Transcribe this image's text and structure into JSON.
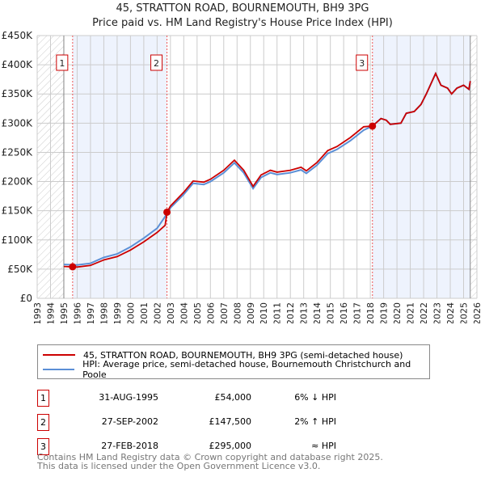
{
  "chart_data": {
    "type": "line",
    "title": "45, STRATTON ROAD, BOURNEMOUTH, BH9 3PG",
    "subtitle": "Price paid vs. HM Land Registry's House Price Index (HPI)",
    "xlim": [
      1993,
      2026
    ],
    "ylim": [
      0,
      450000
    ],
    "yticks": [
      {
        "v": 0,
        "label": "£0"
      },
      {
        "v": 50000,
        "label": "£50K"
      },
      {
        "v": 100000,
        "label": "£100K"
      },
      {
        "v": 150000,
        "label": "£150K"
      },
      {
        "v": 200000,
        "label": "£200K"
      },
      {
        "v": 250000,
        "label": "£250K"
      },
      {
        "v": 300000,
        "label": "£300K"
      },
      {
        "v": 350000,
        "label": "£350K"
      },
      {
        "v": 400000,
        "label": "£400K"
      },
      {
        "v": 450000,
        "label": "£450K"
      }
    ],
    "xticks": [
      1993,
      1994,
      1995,
      1996,
      1997,
      1998,
      1999,
      2000,
      2001,
      2002,
      2003,
      2004,
      2005,
      2006,
      2007,
      2008,
      2009,
      2010,
      2011,
      2012,
      2013,
      2014,
      2015,
      2016,
      2017,
      2018,
      2019,
      2020,
      2021,
      2022,
      2023,
      2024,
      2025,
      2026
    ],
    "grid": true,
    "series": [
      {
        "name": "HPI: Average price, semi-detached house, Bournemouth Christchurch and Poole",
        "color": "#5b8fd6",
        "x": [
          1995,
          1996,
          1997,
          1998,
          1999,
          2000,
          2001,
          2002,
          2002.75,
          2003,
          2004,
          2004.7,
          2005.5,
          2006,
          2007,
          2007.8,
          2008.5,
          2009.2,
          2009.8,
          2010.5,
          2011,
          2012,
          2012.8,
          2013.2,
          2014,
          2014.8,
          2015.5,
          2016.5,
          2017.5,
          2018.16,
          2018.8,
          2019.2,
          2019.5,
          2020.3,
          2020.7,
          2021.3,
          2021.8,
          2022.2,
          2022.9,
          2023.3,
          2023.8,
          2024.1,
          2024.5,
          2025,
          2025.4,
          2025.5
        ],
        "y": [
          58000,
          57000,
          60000,
          70000,
          76000,
          88000,
          103000,
          120000,
          145000,
          155000,
          178000,
          197000,
          195000,
          200000,
          215000,
          232000,
          215000,
          188000,
          207000,
          215000,
          212000,
          215000,
          220000,
          214000,
          228000,
          248000,
          255000,
          270000,
          288000,
          295000,
          308000,
          305000,
          298000,
          300000,
          317000,
          320000,
          332000,
          350000,
          385000,
          365000,
          360000,
          350000,
          360000,
          365000,
          358000,
          372000
        ]
      },
      {
        "name": "45, STRATTON ROAD, BOURNEMOUTH, BH9 3PG (semi-detached house)",
        "color": "#cc0000",
        "x": [
          1995,
          1996,
          1997,
          1998,
          1999,
          2000,
          2001,
          2002,
          2002.6,
          2002.74,
          2003,
          2004,
          2004.7,
          2005.5,
          2006,
          2007,
          2007.8,
          2008.5,
          2009.2,
          2009.8,
          2010.5,
          2011,
          2012,
          2012.8,
          2013.2,
          2014,
          2014.8,
          2015.5,
          2016.5,
          2017.5,
          2018.16,
          2018.8,
          2019.2,
          2019.5,
          2020.3,
          2020.7,
          2021.3,
          2021.8,
          2022.2,
          2022.9,
          2023.3,
          2023.8,
          2024.1,
          2024.5,
          2025,
          2025.4,
          2025.5
        ],
        "y": [
          54500,
          53600,
          56400,
          65800,
          71400,
          82700,
          96800,
          112800,
          125000,
          147500,
          158000,
          181600,
          200900,
          198900,
          204000,
          219300,
          236600,
          219300,
          191800,
          211100,
          219300,
          216200,
          219300,
          224400,
          218300,
          232600,
          253000,
          260100,
          275400,
          293800,
          295000,
          308000,
          305000,
          298000,
          300000,
          317000,
          320000,
          332000,
          350000,
          385000,
          365000,
          360000,
          350000,
          360000,
          365000,
          358000,
          372000
        ]
      }
    ],
    "sales": [
      {
        "n": "1",
        "x": 1995.66,
        "price": 54000
      },
      {
        "n": "2",
        "x": 2002.74,
        "price": 147500
      },
      {
        "n": "3",
        "x": 2018.16,
        "price": 295000
      }
    ],
    "shaded": [
      [
        1995.66,
        2002.74
      ],
      [
        2018.16,
        2025.5
      ]
    ],
    "hatched": [
      [
        1993,
        1995
      ],
      [
        2025.5,
        2026
      ]
    ]
  },
  "legend": {
    "red": "45, STRATTON ROAD, BOURNEMOUTH, BH9 3PG (semi-detached house)",
    "blue": "HPI: Average price, semi-detached house, Bournemouth Christchurch and Poole"
  },
  "table": [
    {
      "n": "1",
      "date": "31-AUG-1995",
      "price": "£54,000",
      "rel": "6% ↓ HPI"
    },
    {
      "n": "2",
      "date": "27-SEP-2002",
      "price": "£147,500",
      "rel": "2% ↑ HPI"
    },
    {
      "n": "3",
      "date": "27-FEB-2018",
      "price": "£295,000",
      "rel": "≈ HPI"
    }
  ],
  "footer": [
    "Contains HM Land Registry data © Crown copyright and database right 2025.",
    "This data is licensed under the Open Government Licence v3.0."
  ]
}
